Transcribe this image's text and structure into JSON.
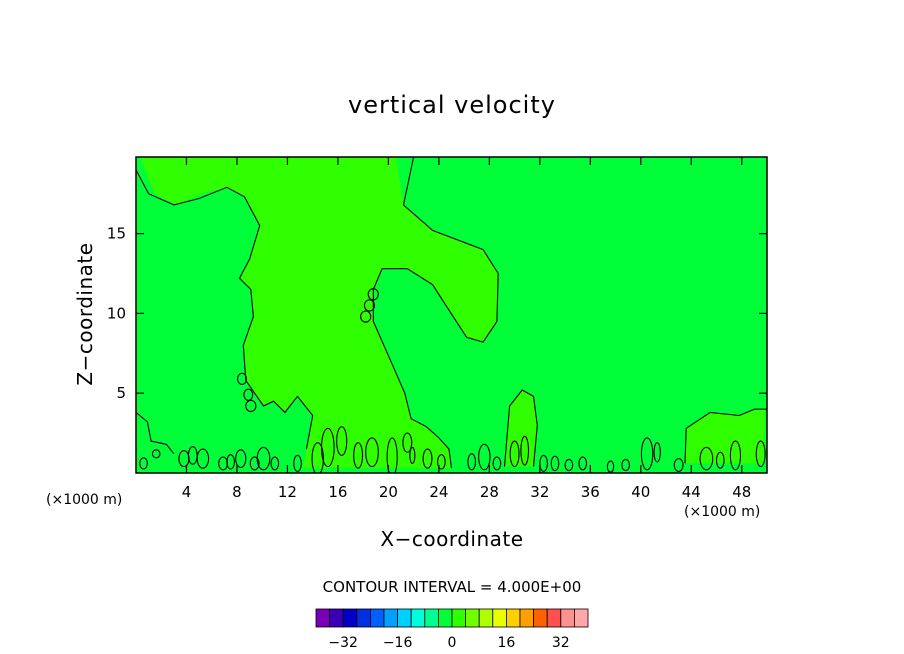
{
  "chart_data": {
    "type": "contour",
    "title": "vertical velocity",
    "xlabel": "X−coordinate",
    "ylabel": "Z−coordinate",
    "x_unit_left": "(×1000 m)",
    "x_unit_right": "(×1000 m)",
    "xlim": [
      0,
      50
    ],
    "ylim": [
      0,
      19.8
    ],
    "x_ticks": [
      4,
      8,
      12,
      16,
      20,
      24,
      28,
      32,
      36,
      40,
      44,
      48
    ],
    "y_ticks": [
      5,
      10,
      15
    ],
    "background_color": "#00ff38",
    "region_colors": {
      "positive_small": "#2fff00",
      "zero_band": "#00ff38"
    },
    "contour_interval_label": "CONTOUR INTERVAL = 4.000E+00",
    "contour_interval": 4.0,
    "colorbar": {
      "levels": [
        -36,
        -32,
        -28,
        -24,
        -20,
        -16,
        -12,
        -8,
        -4,
        0,
        4,
        8,
        12,
        16,
        20,
        24,
        28,
        32,
        36
      ],
      "tick_labels": [
        "−32",
        "−16",
        "0",
        "16",
        "32"
      ],
      "tick_values": [
        -32,
        -16,
        0,
        16,
        32
      ],
      "colors": [
        "#7a00b8",
        "#3a00b8",
        "#0000c8",
        "#0030e0",
        "#0060ff",
        "#00a0ff",
        "#00d0ff",
        "#00ffd8",
        "#00ff90",
        "#00ff38",
        "#2fff00",
        "#70ff00",
        "#b0ff00",
        "#e8ff00",
        "#ffd000",
        "#ffa000",
        "#ff6000",
        "#ff5050",
        "#ff9090",
        "#ffa8a8"
      ]
    },
    "green_regions": [
      {
        "name": "central-upper-positive-region",
        "points": [
          [
            12.2,
            19.8
          ],
          [
            20.6,
            19.8
          ],
          [
            21.2,
            16.8
          ],
          [
            23.5,
            15.2
          ],
          [
            27.5,
            14.0
          ],
          [
            28.7,
            12.5
          ],
          [
            28.6,
            9.5
          ],
          [
            27.5,
            8.2
          ],
          [
            26.2,
            8.5
          ],
          [
            24.8,
            10.2
          ],
          [
            23.5,
            11.8
          ],
          [
            21.5,
            12.8
          ],
          [
            19.5,
            12.8
          ],
          [
            18.8,
            11.5
          ],
          [
            18.8,
            9.5
          ],
          [
            20.2,
            7.0
          ],
          [
            21.3,
            5.0
          ],
          [
            21.8,
            3.4
          ],
          [
            23.0,
            2.9
          ],
          [
            24.0,
            2.2
          ],
          [
            24.8,
            1.5
          ],
          [
            25.0,
            0.3
          ],
          [
            13.2,
            0.3
          ],
          [
            13.5,
            1.5
          ],
          [
            14.0,
            3.6
          ],
          [
            12.8,
            4.8
          ],
          [
            11.8,
            3.8
          ],
          [
            10.9,
            4.5
          ],
          [
            10.1,
            4.2
          ],
          [
            8.7,
            5.8
          ],
          [
            8.5,
            8.0
          ],
          [
            9.3,
            9.8
          ],
          [
            9.1,
            11.5
          ],
          [
            8.2,
            12.2
          ],
          [
            9.0,
            13.4
          ],
          [
            9.8,
            15.5
          ],
          [
            8.6,
            17.3
          ],
          [
            7.2,
            17.9
          ],
          [
            5.2,
            17.5
          ],
          [
            3.2,
            16.8
          ],
          [
            1.5,
            17.5
          ],
          [
            0.3,
            19.8
          ]
        ]
      },
      {
        "name": "right-lower-positive-region",
        "points": [
          [
            43.5,
            0.6
          ],
          [
            43.6,
            2.8
          ],
          [
            45.5,
            3.8
          ],
          [
            47.8,
            3.6
          ],
          [
            49.0,
            4.0
          ],
          [
            49.8,
            4.0
          ],
          [
            49.8,
            0.6
          ]
        ]
      },
      {
        "name": "lower-bump-30",
        "points": [
          [
            29.2,
            0.4
          ],
          [
            29.6,
            4.2
          ],
          [
            30.6,
            5.2
          ],
          [
            31.5,
            4.8
          ],
          [
            31.8,
            3.0
          ],
          [
            31.5,
            0.4
          ]
        ]
      }
    ],
    "contours": [
      {
        "name": "contour-top-left",
        "points": [
          [
            0.0,
            19.0
          ],
          [
            1.0,
            17.5
          ],
          [
            3.0,
            16.8
          ],
          [
            5.0,
            17.2
          ],
          [
            7.2,
            17.9
          ],
          [
            8.6,
            17.3
          ],
          [
            9.8,
            15.5
          ],
          [
            9.0,
            13.4
          ],
          [
            8.2,
            12.2
          ],
          [
            9.1,
            11.5
          ],
          [
            9.3,
            9.8
          ],
          [
            8.5,
            8.0
          ],
          [
            8.7,
            5.8
          ],
          [
            10.1,
            4.2
          ],
          [
            10.9,
            4.5
          ],
          [
            11.8,
            3.8
          ],
          [
            12.8,
            4.8
          ],
          [
            14.0,
            3.6
          ],
          [
            13.5,
            1.5
          ]
        ]
      },
      {
        "name": "contour-top-center",
        "points": [
          [
            22.0,
            19.8
          ],
          [
            21.2,
            16.8
          ],
          [
            23.5,
            15.2
          ],
          [
            27.5,
            14.0
          ],
          [
            28.7,
            12.5
          ],
          [
            28.6,
            9.5
          ],
          [
            27.5,
            8.2
          ],
          [
            26.2,
            8.5
          ],
          [
            24.8,
            10.2
          ],
          [
            23.5,
            11.8
          ],
          [
            21.5,
            12.8
          ],
          [
            19.5,
            12.8
          ],
          [
            18.8,
            11.5
          ],
          [
            18.8,
            9.5
          ],
          [
            20.2,
            7.0
          ],
          [
            21.3,
            5.0
          ],
          [
            21.8,
            3.4
          ],
          [
            23.0,
            2.9
          ],
          [
            24.0,
            2.2
          ],
          [
            24.8,
            1.5
          ],
          [
            25.0,
            0.3
          ]
        ]
      },
      {
        "name": "contour-left-edge",
        "points": [
          [
            0.0,
            3.8
          ],
          [
            0.9,
            3.2
          ],
          [
            1.2,
            2.0
          ],
          [
            2.4,
            1.8
          ],
          [
            3.0,
            1.2
          ]
        ]
      },
      {
        "name": "contour-bump-30",
        "points": [
          [
            29.2,
            0.4
          ],
          [
            29.6,
            4.2
          ],
          [
            30.6,
            5.2
          ],
          [
            31.5,
            4.8
          ],
          [
            31.8,
            3.0
          ],
          [
            31.5,
            0.4
          ]
        ]
      },
      {
        "name": "contour-right-lower",
        "points": [
          [
            43.5,
            0.6
          ],
          [
            43.6,
            2.8
          ],
          [
            45.5,
            3.8
          ],
          [
            47.8,
            3.6
          ],
          [
            49.0,
            4.0
          ],
          [
            50.0,
            4.0
          ]
        ]
      }
    ],
    "small_loops": [
      [
        8.4,
        5.9,
        0.35,
        0.35
      ],
      [
        8.9,
        4.9,
        0.35,
        0.35
      ],
      [
        9.1,
        4.2,
        0.4,
        0.35
      ],
      [
        18.2,
        9.8,
        0.4,
        0.35
      ],
      [
        18.5,
        10.5,
        0.4,
        0.35
      ],
      [
        18.8,
        11.2,
        0.4,
        0.35
      ],
      [
        1.6,
        1.2,
        0.3,
        0.25
      ],
      [
        3.8,
        0.9,
        0.4,
        0.5
      ],
      [
        4.5,
        1.1,
        0.35,
        0.55
      ],
      [
        5.3,
        0.9,
        0.45,
        0.6
      ],
      [
        6.9,
        0.6,
        0.35,
        0.4
      ],
      [
        7.5,
        0.7,
        0.3,
        0.45
      ],
      [
        8.3,
        0.9,
        0.4,
        0.55
      ],
      [
        9.4,
        0.6,
        0.35,
        0.4
      ],
      [
        10.1,
        0.9,
        0.5,
        0.7
      ],
      [
        11.0,
        0.6,
        0.3,
        0.4
      ],
      [
        12.8,
        0.6,
        0.3,
        0.5
      ],
      [
        14.4,
        0.9,
        0.45,
        1.0
      ],
      [
        15.2,
        1.6,
        0.5,
        1.2
      ],
      [
        16.3,
        2.0,
        0.4,
        0.9
      ],
      [
        17.6,
        1.1,
        0.35,
        0.8
      ],
      [
        18.7,
        1.3,
        0.5,
        0.9
      ],
      [
        20.3,
        1.0,
        0.4,
        1.2
      ],
      [
        21.5,
        1.9,
        0.35,
        0.6
      ],
      [
        21.9,
        1.1,
        0.2,
        0.5
      ],
      [
        23.1,
        0.9,
        0.35,
        0.6
      ],
      [
        24.2,
        0.7,
        0.3,
        0.45
      ],
      [
        26.6,
        0.7,
        0.3,
        0.5
      ],
      [
        27.6,
        1.0,
        0.45,
        0.8
      ],
      [
        28.6,
        0.6,
        0.3,
        0.4
      ],
      [
        30.0,
        1.2,
        0.35,
        0.8
      ],
      [
        30.8,
        1.4,
        0.3,
        0.9
      ],
      [
        32.3,
        0.6,
        0.3,
        0.5
      ],
      [
        33.2,
        0.6,
        0.3,
        0.45
      ],
      [
        34.3,
        0.5,
        0.3,
        0.35
      ],
      [
        35.4,
        0.6,
        0.3,
        0.4
      ],
      [
        37.6,
        0.4,
        0.25,
        0.35
      ],
      [
        38.8,
        0.5,
        0.3,
        0.35
      ],
      [
        40.5,
        1.2,
        0.45,
        1.0
      ],
      [
        41.3,
        1.3,
        0.25,
        0.6
      ],
      [
        43.0,
        0.5,
        0.35,
        0.4
      ],
      [
        45.2,
        0.9,
        0.5,
        0.7
      ],
      [
        46.3,
        0.8,
        0.3,
        0.5
      ],
      [
        47.5,
        1.1,
        0.4,
        0.9
      ],
      [
        49.5,
        1.2,
        0.35,
        0.8
      ],
      [
        0.6,
        0.6,
        0.3,
        0.35
      ]
    ]
  }
}
